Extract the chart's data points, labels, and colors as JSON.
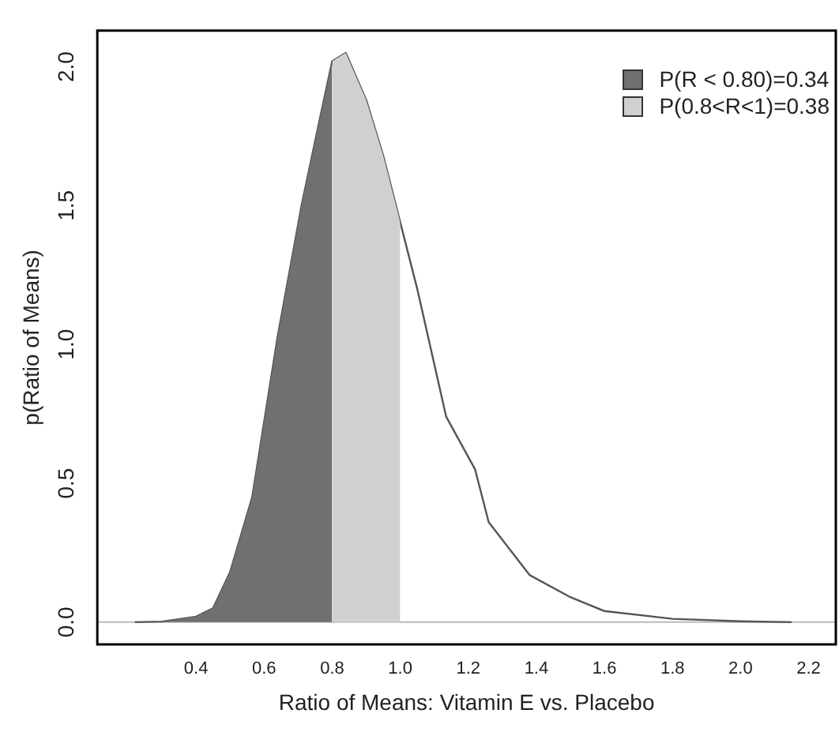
{
  "chart_data": {
    "type": "area",
    "xlabel": "Ratio of Means: Vitamin E vs. Placebo",
    "ylabel": "p(Ratio of Means)",
    "xlim": [
      0.11,
      2.28
    ],
    "ylim": [
      -0.08,
      2.13
    ],
    "xticks": [
      0.4,
      0.6,
      0.8,
      {
        "value": 1,
        "label": "1.0"
      },
      1.2,
      1.4,
      1.6,
      1.8,
      {
        "value": 2,
        "label": "2.0"
      },
      2.2
    ],
    "yticks": [
      {
        "value": 0,
        "label": "0.0"
      },
      {
        "value": 0.5,
        "label": "0.5"
      },
      {
        "value": 1,
        "label": "1.0"
      },
      {
        "value": 1.5,
        "label": "1.5"
      },
      {
        "value": 2,
        "label": "2.0"
      }
    ],
    "grid": false,
    "legend": "top right",
    "ref_lines": [
      {
        "axis": "y",
        "value": 0,
        "color": "#bbbbbb"
      }
    ],
    "series": [
      {
        "name": "P(R < 0.80)=0.34",
        "color": "#707070",
        "x": [
          0.22,
          0.3,
          0.4,
          0.45,
          0.5,
          0.565,
          0.64,
          0.71,
          0.76,
          0.8
        ],
        "values": [
          0,
          0.002,
          0.02,
          0.05,
          0.18,
          0.45,
          1.03,
          1.5,
          1.79,
          2.02
        ]
      },
      {
        "name": "P(0.8<R<1)=0.38",
        "color": "#d0d0d0",
        "x": [
          0.8,
          0.84,
          0.9,
          0.95,
          1.0
        ],
        "values": [
          2.02,
          2.05,
          1.88,
          1.68,
          1.44
        ]
      },
      {
        "type": "line",
        "color": "#555555",
        "x": [
          0.22,
          0.3,
          0.4,
          0.45,
          0.5,
          0.565,
          0.64,
          0.71,
          0.76,
          0.8,
          0.84,
          0.9,
          0.95,
          1.0,
          1.05,
          1.135,
          1.22,
          1.26,
          1.38,
          1.5,
          1.6,
          1.8,
          2.0,
          2.15
        ],
        "values": [
          0,
          0.002,
          0.02,
          0.05,
          0.18,
          0.45,
          1.03,
          1.5,
          1.79,
          2.02,
          2.05,
          1.88,
          1.68,
          1.44,
          1.2,
          0.74,
          0.55,
          0.36,
          0.17,
          0.09,
          0.04,
          0.012,
          0.003,
          0
        ]
      }
    ]
  }
}
